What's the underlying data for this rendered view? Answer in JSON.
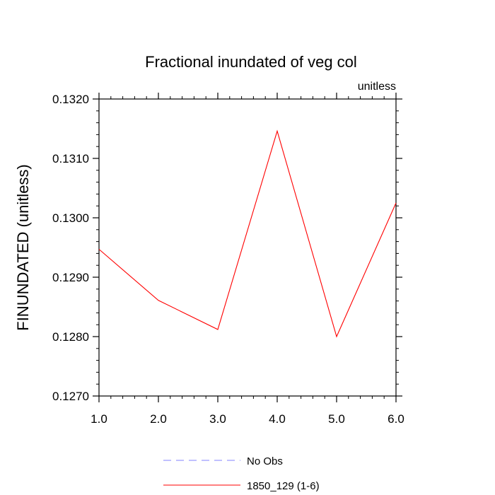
{
  "chart_data": {
    "type": "line",
    "title": "Fractional inundated of veg col",
    "units_label": "unitless",
    "ylabel": "FINUNDATED  (unitless)",
    "xlabel": "",
    "xlim": [
      1.0,
      6.0
    ],
    "ylim": [
      0.127,
      0.132
    ],
    "x_ticks": [
      1.0,
      2.0,
      3.0,
      4.0,
      5.0,
      6.0
    ],
    "x_tick_labels": [
      "1.0",
      "2.0",
      "3.0",
      "4.0",
      "5.0",
      "6.0"
    ],
    "y_ticks": [
      0.127,
      0.128,
      0.129,
      0.13,
      0.131,
      0.132
    ],
    "y_tick_labels": [
      "0.1270",
      "0.1280",
      "0.1290",
      "0.1300",
      "0.1310",
      "0.1320"
    ],
    "grid": false,
    "legend_position": "bottom",
    "series": [
      {
        "name": "No Obs",
        "color": "#8080ff",
        "dash": "dashed",
        "x": [],
        "values": []
      },
      {
        "name": "1850_129 (1-6)",
        "color": "#ff0000",
        "dash": "solid",
        "x": [
          1.0,
          2.0,
          3.0,
          4.0,
          5.0,
          6.0
        ],
        "values": [
          0.12947,
          0.12861,
          0.12812,
          0.13146,
          0.128,
          0.13025
        ]
      }
    ]
  }
}
